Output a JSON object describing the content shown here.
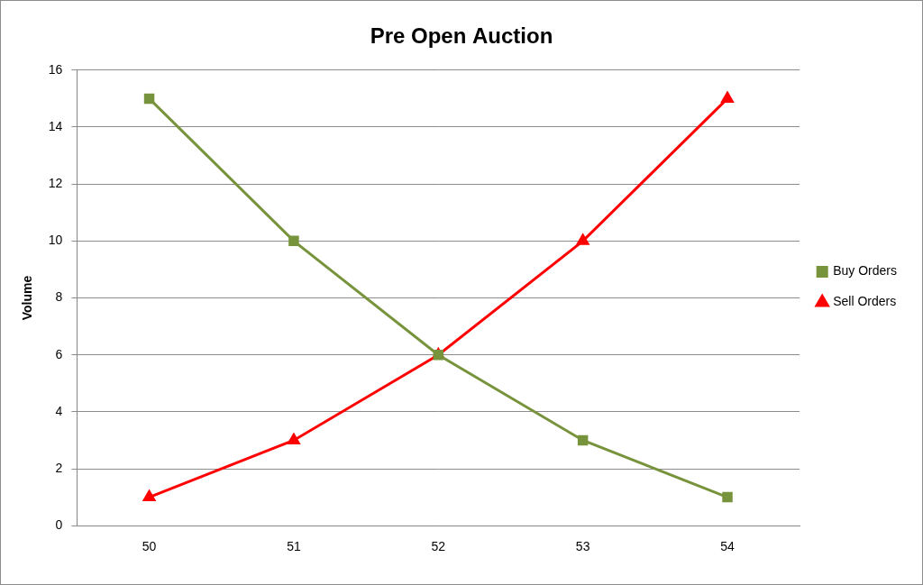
{
  "chart_data": {
    "type": "line",
    "title": "Pre Open Auction",
    "y_label": "Volume",
    "categories": [
      "50",
      "51",
      "52",
      "53",
      "54"
    ],
    "series": [
      {
        "name": "Buy Orders",
        "color": "#77933c",
        "marker": "square",
        "line_style": "solid",
        "values": [
          15,
          10,
          6,
          3,
          1
        ]
      },
      {
        "name": "Sell Orders",
        "color": "#ff0000",
        "marker": "triangle",
        "line_style": "solid",
        "values": [
          1,
          3,
          6,
          10,
          15
        ]
      }
    ],
    "ylim": [
      0,
      16
    ],
    "yticks": [
      0,
      2,
      4,
      6,
      8,
      10,
      12,
      14,
      16
    ],
    "grid": true,
    "legend": "right"
  }
}
